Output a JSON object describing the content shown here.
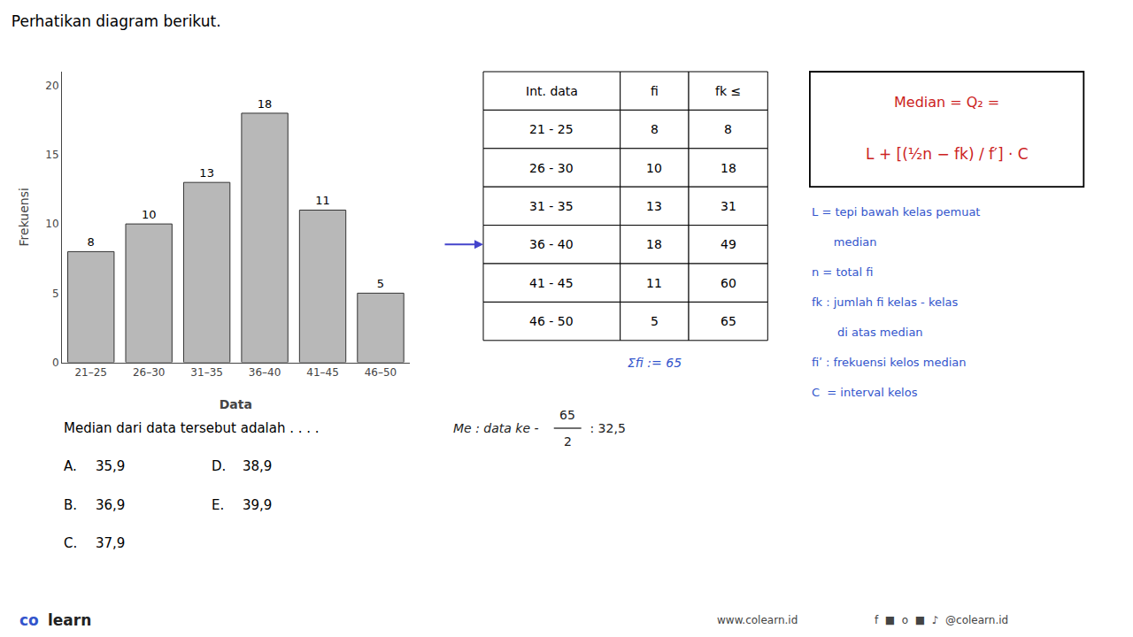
{
  "chart_data": {
    "type": "bar",
    "title": "Perhatikan diagram berikut.",
    "xlabel": "Data",
    "ylabel": "Frekuensi",
    "categories": [
      "21–25",
      "26–30",
      "31–35",
      "36–40",
      "41–45",
      "46–50"
    ],
    "values": [
      8,
      10,
      13,
      18,
      11,
      5
    ],
    "color": "#b8b8b8",
    "ylim": [
      0,
      21
    ],
    "yticks": [
      0,
      5,
      10,
      15,
      20
    ],
    "data_labels": true,
    "grid": false,
    "annotations": {
      "question": "Median dari data tersebut adalah . . . .",
      "choices": [
        [
          "A.",
          "35,9",
          "D.",
          "38,9"
        ],
        [
          "B.",
          "36,9",
          "E.",
          "39,9"
        ],
        [
          "C.",
          "37,9"
        ]
      ],
      "table": {
        "header": [
          "Int. data",
          "fi",
          "fk ≤"
        ],
        "rows": [
          [
            "21 - 25",
            "8",
            "8"
          ],
          [
            "26 - 30",
            "10",
            "18"
          ],
          [
            "31 - 35",
            "13",
            "31"
          ],
          [
            "36 - 40",
            "18",
            "49"
          ],
          [
            "41 - 45",
            "11",
            "60"
          ],
          [
            "46 - 50",
            "5",
            "65"
          ]
        ]
      },
      "sum_text": {
        "text": "Σfi := 65",
        "color": "#3355cc"
      },
      "arrow": {
        "to_row": "36 - 40",
        "color": "#4444cc"
      },
      "median": {
        "text": "Me : data ke - ",
        "numerator": "65",
        "denominator": "2",
        "result": " : 32,5"
      },
      "formula": {
        "lines": [
          "Median = Q₂ =",
          "L + [(½n − fk) / f′] · C"
        ],
        "color": "#cc2222"
      },
      "notes": {
        "lines": [
          "L = tepi bawah kelas pemuat",
          "      median",
          "n = total fi",
          "fk : jumlah fi kelas - kelas",
          "       di atas median",
          "fiʹ : frekuensi kelos median",
          "C  = interval kelos"
        ],
        "color": "#3355cc"
      },
      "footer": [
        {
          "text": "co",
          "color": "#3355cc"
        },
        {
          "text": " learn",
          "color": "#222222"
        },
        {
          "text": "www.colearn.id",
          "color": "#444444"
        },
        {
          "text": "f  ■  o  ■  ♪  @colearn.id",
          "color": "#444444"
        }
      ]
    }
  }
}
